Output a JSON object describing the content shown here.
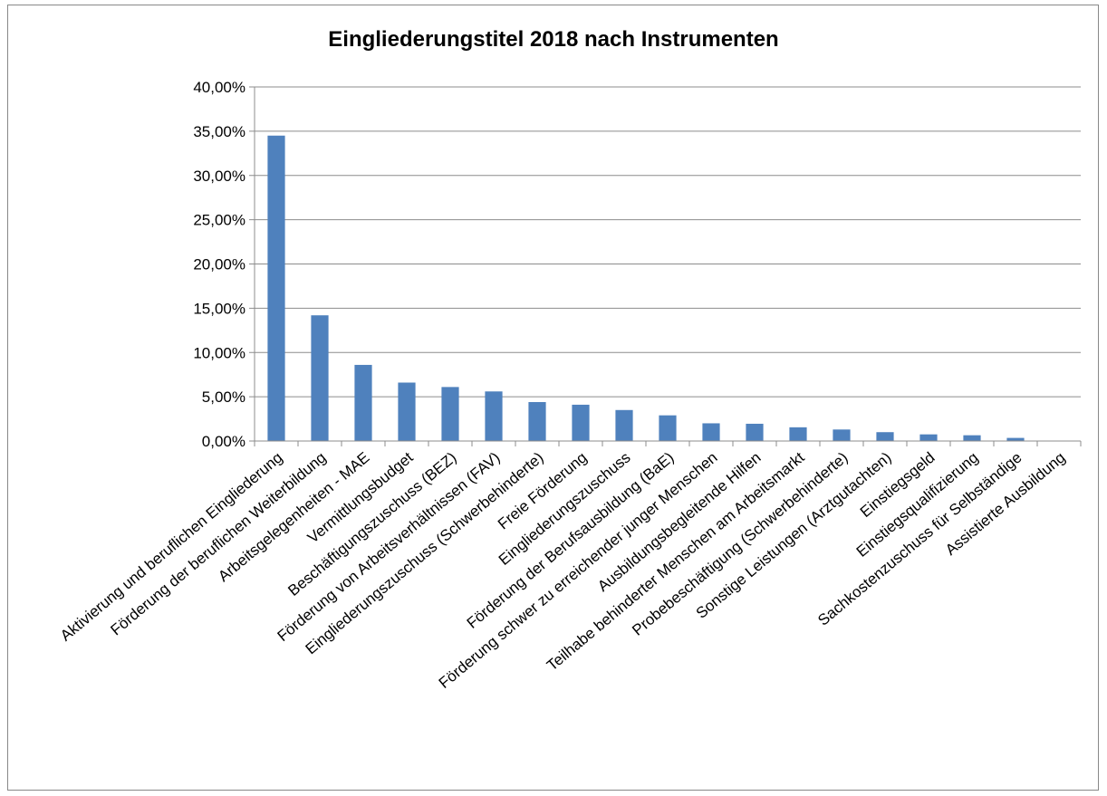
{
  "chart_data": {
    "type": "bar",
    "title": "Eingliederungstitel 2018 nach Instrumenten",
    "xlabel": "",
    "ylabel": "",
    "ylim": [
      0,
      40
    ],
    "y_tick_labels": [
      "0,00%",
      "5,00%",
      "10,00%",
      "15,00%",
      "20,00%",
      "25,00%",
      "30,00%",
      "35,00%",
      "40,00%"
    ],
    "y_ticks": [
      0,
      5,
      10,
      15,
      20,
      25,
      30,
      35,
      40
    ],
    "grid": true,
    "bar_color": "#4F81BD",
    "categories": [
      "Aktivierung und beruflichen Eingliederung",
      "Förderung der beruflichen Weiterbildung",
      "Arbeitsgelegenheiten - MAE",
      "Vermittlungsbudget",
      "Beschäftigungszuschuss (BEZ)",
      "Förderung von Arbeitsverhältnissen (FAV)",
      "Eingliederungszuschuss (Schwerbehinderte)",
      "Freie Förderung",
      "Eingliederungszuschuss",
      "Förderung der Berufsausbildung (BaE)",
      "Förderung schwer zu erreichender junger Menschen",
      "Ausbildungsbegleitende Hilfen",
      "Teilhabe behinderter Menschen am Arbeitsmarkt",
      "Probebeschäftigung (Schwerbehinderte)",
      "Sonstige Leistungen (Arztgutachten)",
      "Einstiegsgeld",
      "Einstiegsqualifizierung",
      "Sachkostenzuschuss für Selbständige",
      "Assistierte Ausbildung"
    ],
    "values": [
      34.5,
      14.2,
      8.6,
      6.6,
      6.1,
      5.6,
      4.4,
      4.1,
      3.5,
      2.9,
      2.0,
      1.95,
      1.55,
      1.3,
      1.0,
      0.75,
      0.65,
      0.35,
      0.05
    ]
  }
}
